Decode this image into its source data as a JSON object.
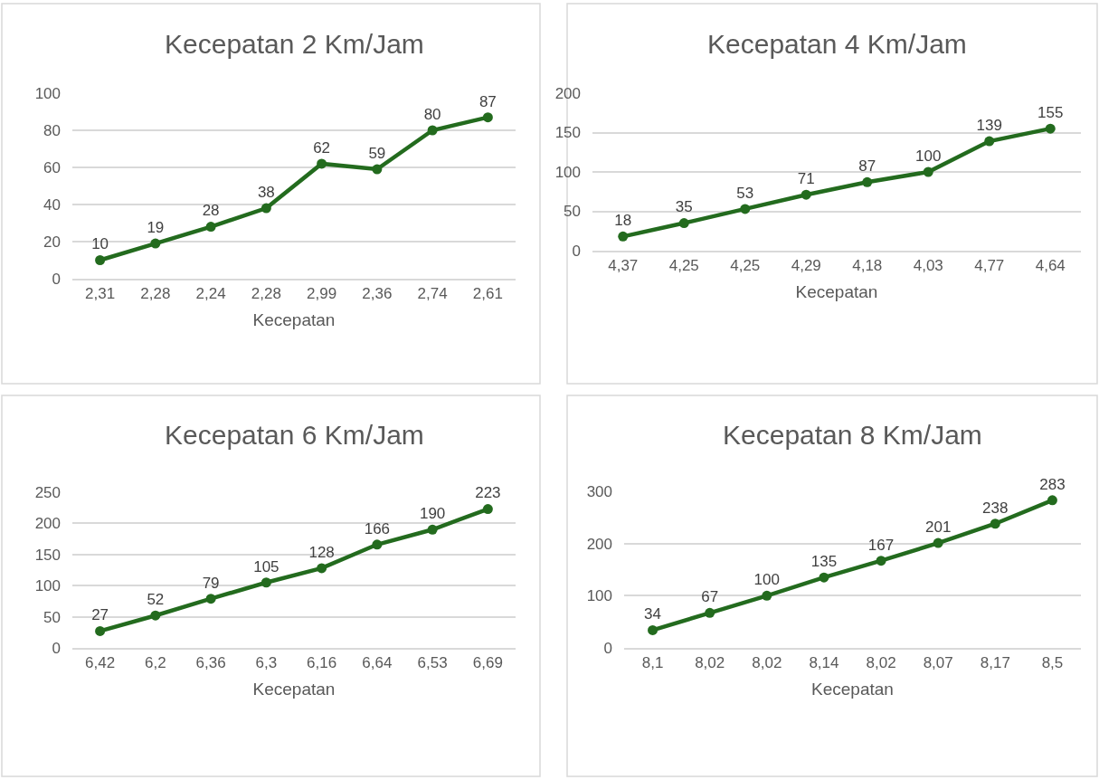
{
  "chart_data": [
    {
      "type": "line",
      "title": "Kecepatan 2 Km/Jam",
      "xlabel": "Kecepatan",
      "categories": [
        "2,31",
        "2,28",
        "2,24",
        "2,28",
        "2,99",
        "2,36",
        "2,74",
        "2,61"
      ],
      "series": [
        {
          "color": "#236b1e",
          "values": [
            10,
            19,
            28,
            38,
            62,
            59,
            80,
            87
          ]
        }
      ],
      "ylim": [
        0,
        100
      ],
      "yticks": [
        0,
        20,
        40,
        60,
        80,
        100
      ],
      "grid": "y",
      "marker": "circle",
      "data_labels": true
    },
    {
      "type": "line",
      "title": "Kecepatan 4 Km/Jam",
      "xlabel": "Kecepatan",
      "categories": [
        "4,37",
        "4,25",
        "4,25",
        "4,29",
        "4,18",
        "4,03",
        "4,77",
        "4,64"
      ],
      "series": [
        {
          "color": "#236b1e",
          "values": [
            18,
            35,
            53,
            71,
            87,
            100,
            139,
            155
          ]
        }
      ],
      "ylim": [
        0,
        200
      ],
      "yticks": [
        0,
        50,
        100,
        150,
        200
      ],
      "grid": "y",
      "marker": "circle",
      "data_labels": true
    },
    {
      "type": "line",
      "title": "Kecepatan 6 Km/Jam",
      "xlabel": "Kecepatan",
      "categories": [
        "6,42",
        "6,2",
        "6,36",
        "6,3",
        "6,16",
        "6,64",
        "6,53",
        "6,69"
      ],
      "series": [
        {
          "color": "#236b1e",
          "values": [
            27,
            52,
            79,
            105,
            128,
            166,
            190,
            223
          ]
        }
      ],
      "ylim": [
        0,
        250
      ],
      "yticks": [
        0,
        50,
        100,
        150,
        200,
        250
      ],
      "grid": "y",
      "marker": "circle",
      "data_labels": true
    },
    {
      "type": "line",
      "title": "Kecepatan 8 Km/Jam",
      "xlabel": "Kecepatan",
      "categories": [
        "8,1",
        "8,02",
        "8,02",
        "8,14",
        "8,02",
        "8,07",
        "8,17",
        "8,5"
      ],
      "series": [
        {
          "color": "#236b1e",
          "values": [
            34,
            67,
            100,
            135,
            167,
            201,
            238,
            283
          ]
        }
      ],
      "ylim": [
        0,
        300
      ],
      "yticks": [
        0,
        100,
        200,
        300
      ],
      "grid": "y",
      "marker": "circle",
      "data_labels": true
    }
  ]
}
